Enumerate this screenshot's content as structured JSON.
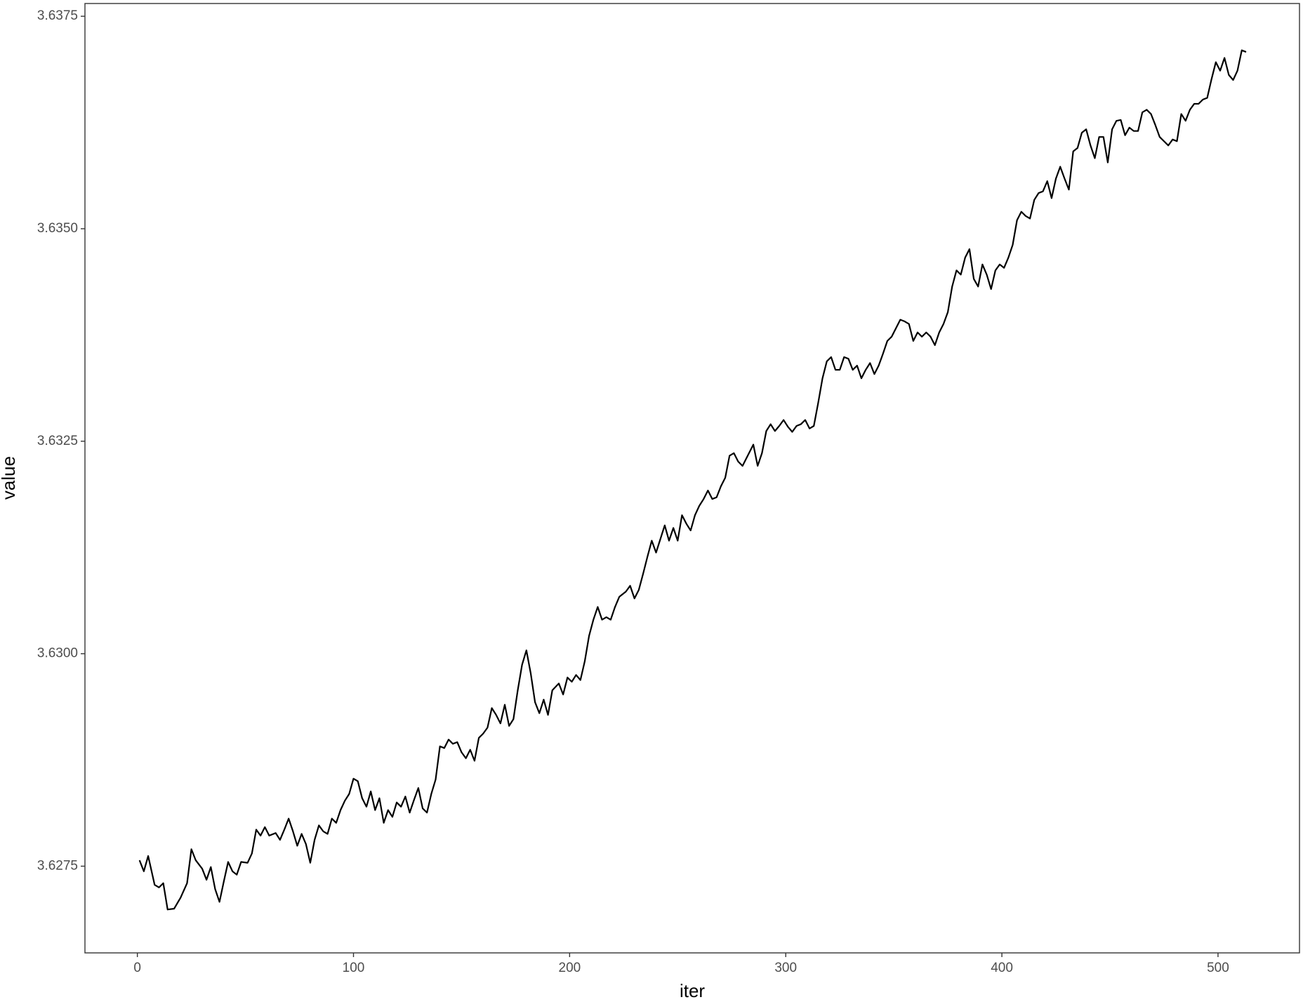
{
  "chart_data": {
    "type": "line",
    "x_label": "iter",
    "y_label": "value",
    "xlim": [
      -24.25,
      537.7
    ],
    "ylim": [
      3.62648,
      3.63765
    ],
    "xticks": [
      0,
      100,
      200,
      300,
      400,
      500
    ],
    "yticks": [
      3.6275,
      {
        "value": 3.63,
        "label": "3.6300"
      },
      3.6325,
      {
        "value": 3.635,
        "label": "3.6350"
      },
      3.6375
    ],
    "grid": false,
    "series": [
      {
        "color": "#000000",
        "x": [
          1,
          3,
          5,
          8,
          10,
          12,
          14,
          17,
          20,
          23,
          25,
          27,
          30,
          32,
          34,
          36,
          38,
          40,
          42,
          44,
          46,
          48,
          51,
          53,
          55,
          57,
          59,
          61,
          64,
          66,
          68,
          70,
          72,
          74,
          76,
          78,
          80,
          82,
          84,
          86,
          88,
          90,
          92,
          94,
          96,
          98,
          100,
          102,
          104,
          106,
          108,
          110,
          112,
          114,
          116,
          118,
          120,
          122,
          124,
          126,
          128,
          130,
          132,
          134,
          136,
          138,
          140,
          142,
          144,
          146,
          148,
          150,
          152,
          154,
          156,
          158,
          160,
          162,
          164,
          166,
          168,
          170,
          172,
          174,
          176,
          178,
          180,
          182,
          184,
          186,
          188,
          190,
          192,
          195,
          197,
          199,
          201,
          203,
          205,
          207,
          209,
          211,
          213,
          215,
          217,
          219,
          221,
          223,
          226,
          228,
          230,
          232,
          234,
          236,
          238,
          240,
          242,
          244,
          246,
          248,
          250,
          252,
          254,
          256,
          258,
          260,
          262,
          264,
          266,
          268,
          270,
          272,
          274,
          276,
          278,
          280,
          283,
          285,
          287,
          289,
          291,
          293,
          295,
          297,
          299,
          301,
          303,
          305,
          307,
          309,
          311,
          313,
          315,
          317,
          319,
          321,
          323,
          325,
          327,
          329,
          331,
          333,
          335,
          337,
          339,
          341,
          343,
          345,
          347,
          349,
          351,
          353,
          355,
          357,
          359,
          361,
          363,
          365,
          367,
          369,
          371,
          373,
          375,
          377,
          379,
          381,
          383,
          385,
          387,
          389,
          391,
          393,
          395,
          397,
          399,
          401,
          403,
          405,
          407,
          409,
          411,
          413,
          415,
          417,
          419,
          421,
          423,
          425,
          427,
          429,
          431,
          433,
          435,
          437,
          439,
          441,
          443,
          445,
          447,
          449,
          451,
          453,
          455,
          457,
          459,
          461,
          463,
          465,
          467,
          469,
          471,
          473,
          475,
          477,
          479,
          481,
          483,
          485,
          487,
          489,
          491,
          493,
          495,
          497,
          499,
          501,
          503,
          505,
          507,
          509,
          511,
          513
        ],
        "values": [
          3.62757,
          3.62744,
          3.62762,
          3.62728,
          3.62725,
          3.6273,
          3.62699,
          3.627,
          3.62713,
          3.6273,
          3.6277,
          3.62757,
          3.62747,
          3.62734,
          3.62749,
          3.62723,
          3.62708,
          3.62732,
          3.62755,
          3.62744,
          3.6274,
          3.62755,
          3.62754,
          3.62765,
          3.62793,
          3.62786,
          3.62796,
          3.62786,
          3.62789,
          3.62781,
          3.62793,
          3.62806,
          3.62791,
          3.62774,
          3.62788,
          3.62776,
          3.62754,
          3.62781,
          3.62798,
          3.62791,
          3.62788,
          3.62806,
          3.62801,
          3.62816,
          3.62827,
          3.62835,
          3.62853,
          3.6285,
          3.6283,
          3.6282,
          3.62838,
          3.62816,
          3.6283,
          3.62801,
          3.62816,
          3.62808,
          3.62825,
          3.6282,
          3.62832,
          3.62813,
          3.62828,
          3.62842,
          3.62818,
          3.62813,
          3.62835,
          3.62852,
          3.62891,
          3.62889,
          3.62899,
          3.62894,
          3.62896,
          3.62884,
          3.62877,
          3.62887,
          3.62874,
          3.62901,
          3.62906,
          3.62913,
          3.62936,
          3.62928,
          3.62918,
          3.6294,
          3.62915,
          3.62923,
          3.62957,
          3.62987,
          3.63004,
          3.62977,
          3.62943,
          3.6293,
          3.62946,
          3.62928,
          3.62957,
          3.62965,
          3.62952,
          3.62972,
          3.62967,
          3.62975,
          3.62969,
          3.62991,
          3.63021,
          3.6304,
          3.63055,
          3.6304,
          3.63043,
          3.6304,
          3.63055,
          3.63067,
          3.63073,
          3.6308,
          3.63065,
          3.63075,
          3.63094,
          3.63114,
          3.63133,
          3.63119,
          3.63135,
          3.63151,
          3.63133,
          3.63148,
          3.63133,
          3.63163,
          3.63153,
          3.63145,
          3.63163,
          3.63174,
          3.63182,
          3.63192,
          3.63182,
          3.63184,
          3.63197,
          3.63207,
          3.63233,
          3.63236,
          3.63226,
          3.63221,
          3.63236,
          3.63246,
          3.63221,
          3.63236,
          3.63262,
          3.6327,
          3.63262,
          3.63268,
          3.63275,
          3.63267,
          3.63261,
          3.63268,
          3.6327,
          3.63275,
          3.63265,
          3.63268,
          3.63295,
          3.63324,
          3.63344,
          3.63349,
          3.63334,
          3.63334,
          3.63349,
          3.63347,
          3.63334,
          3.63339,
          3.63324,
          3.63334,
          3.63342,
          3.63329,
          3.63339,
          3.63353,
          3.63368,
          3.63373,
          3.63383,
          3.63393,
          3.63391,
          3.63388,
          3.63368,
          3.63378,
          3.63373,
          3.63378,
          3.63373,
          3.63363,
          3.63378,
          3.63388,
          3.63402,
          3.63432,
          3.63451,
          3.63446,
          3.63466,
          3.63476,
          3.63441,
          3.63432,
          3.63458,
          3.63446,
          3.63429,
          3.63451,
          3.63458,
          3.63454,
          3.63466,
          3.63481,
          3.6351,
          3.6352,
          3.63515,
          3.63512,
          3.63534,
          3.63542,
          3.63544,
          3.63556,
          3.63536,
          3.63559,
          3.63573,
          3.63559,
          3.63546,
          3.63591,
          3.63595,
          3.63613,
          3.63617,
          3.63598,
          3.63583,
          3.63608,
          3.63608,
          3.63578,
          3.63617,
          3.63627,
          3.63628,
          3.6361,
          3.63619,
          3.63615,
          3.63615,
          3.63637,
          3.6364,
          3.63635,
          3.63622,
          3.63608,
          3.63603,
          3.63598,
          3.63605,
          3.63603,
          3.63635,
          3.63627,
          3.6364,
          3.63647,
          3.63647,
          3.63652,
          3.63654,
          3.63676,
          3.63696,
          3.63686,
          3.63701,
          3.63681,
          3.63675,
          3.63686,
          3.6371,
          3.63708
        ]
      }
    ]
  }
}
